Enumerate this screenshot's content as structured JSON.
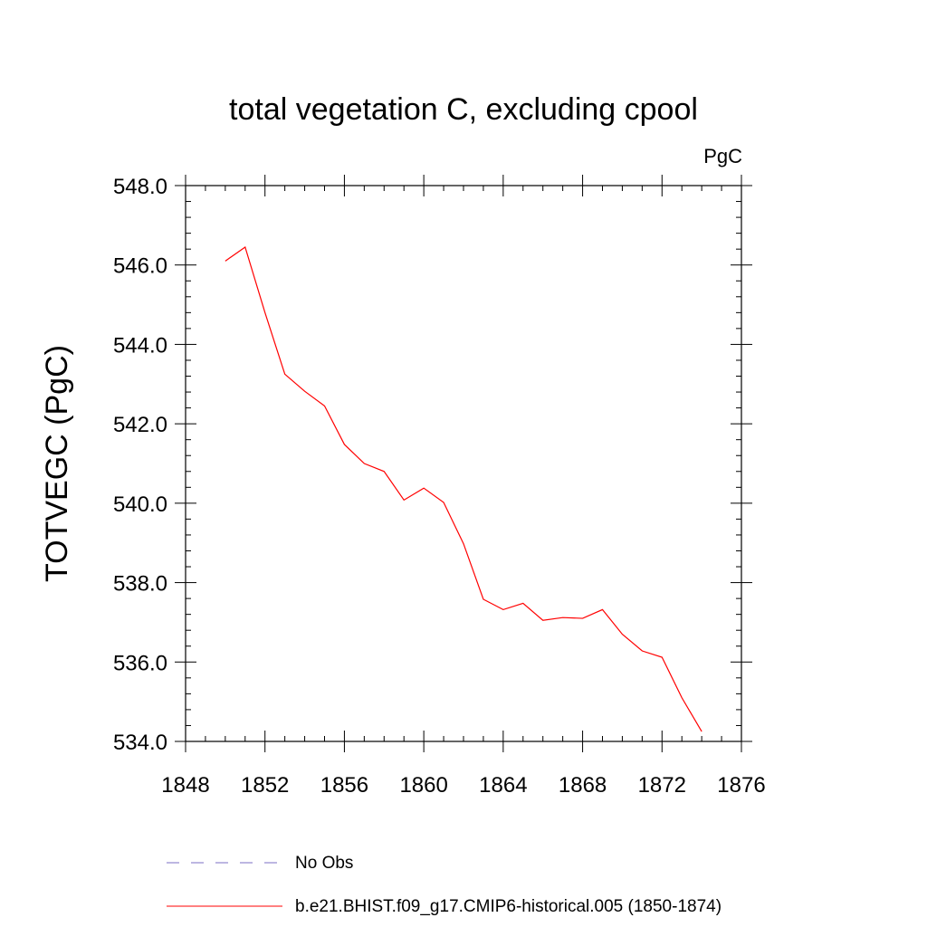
{
  "chart_data": {
    "type": "line",
    "title": "total vegetation C, excluding cpool",
    "units_label": "PgC",
    "xlabel": "",
    "ylabel": "TOTVEGC  (PgC)",
    "xlim": [
      1848,
      1876
    ],
    "ylim": [
      534.0,
      548.0
    ],
    "x_ticks": [
      1848,
      1852,
      1856,
      1860,
      1864,
      1868,
      1872,
      1876
    ],
    "x_tick_labels": [
      "1848",
      "1852",
      "1856",
      "1860",
      "1864",
      "1868",
      "1872",
      "1876"
    ],
    "y_ticks": [
      534,
      536,
      538,
      540,
      542,
      544,
      546,
      548
    ],
    "y_tick_labels": [
      "534.0",
      "536.0",
      "538.0",
      "540.0",
      "542.0",
      "544.0",
      "546.0",
      "548.0"
    ],
    "grid": false,
    "legend_position": "bottom",
    "series": [
      {
        "name": "No Obs",
        "color": "#7b6fc4",
        "dash": "dashed",
        "x": [],
        "values": []
      },
      {
        "name": "b.e21.BHIST.f09_g17.CMIP6-historical.005 (1850-1874)",
        "color": "#ff0000",
        "dash": "solid",
        "x": [
          1850,
          1851,
          1852,
          1853,
          1854,
          1855,
          1856,
          1857,
          1858,
          1859,
          1860,
          1861,
          1862,
          1863,
          1864,
          1865,
          1866,
          1867,
          1868,
          1869,
          1870,
          1871,
          1872,
          1873,
          1874
        ],
        "values": [
          546.1,
          546.45,
          544.8,
          543.25,
          542.82,
          542.45,
          541.48,
          541.0,
          540.8,
          540.08,
          540.38,
          540.02,
          538.98,
          537.58,
          537.32,
          537.48,
          537.05,
          537.12,
          537.1,
          537.32,
          536.7,
          536.28,
          536.12,
          535.1,
          534.25
        ]
      }
    ]
  }
}
